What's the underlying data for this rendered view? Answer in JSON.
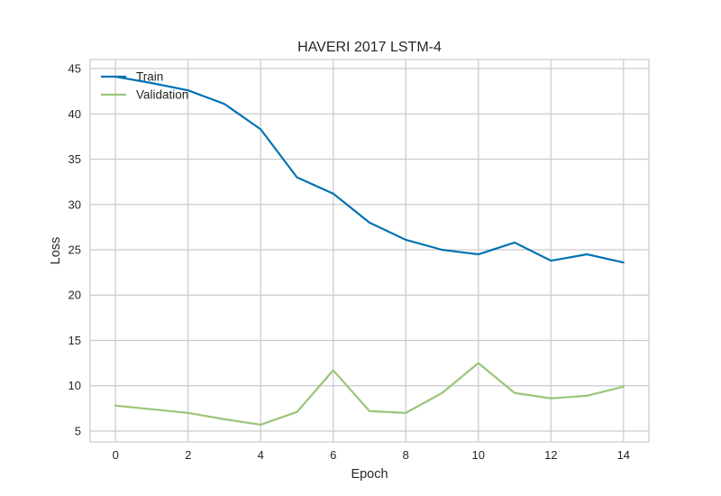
{
  "chart_data": {
    "type": "line",
    "title": "HAVERI 2017 LSTM-4",
    "xlabel": "Epoch",
    "ylabel": "Loss",
    "x": [
      0,
      1,
      2,
      3,
      4,
      5,
      6,
      7,
      8,
      9,
      10,
      11,
      12,
      13,
      14
    ],
    "xlim": [
      -0.7,
      14.7
    ],
    "ylim": [
      3.8,
      46.0
    ],
    "xticks": [
      0,
      2,
      4,
      6,
      8,
      10,
      12,
      14
    ],
    "yticks": [
      5,
      10,
      15,
      20,
      25,
      30,
      35,
      40,
      45
    ],
    "grid": true,
    "legend_position": "top-left",
    "series": [
      {
        "name": "Train",
        "color": "#0072b2",
        "values": [
          44.1,
          43.4,
          42.6,
          41.1,
          38.3,
          33.0,
          31.2,
          28.0,
          26.1,
          25.0,
          24.5,
          25.8,
          23.8,
          24.5,
          23.6
        ]
      },
      {
        "name": "Validation",
        "color": "#9bc679",
        "values": [
          7.8,
          7.4,
          7.0,
          6.3,
          5.7,
          7.1,
          11.7,
          7.2,
          7.0,
          9.2,
          12.5,
          9.2,
          8.6,
          8.9,
          9.9
        ]
      }
    ]
  }
}
